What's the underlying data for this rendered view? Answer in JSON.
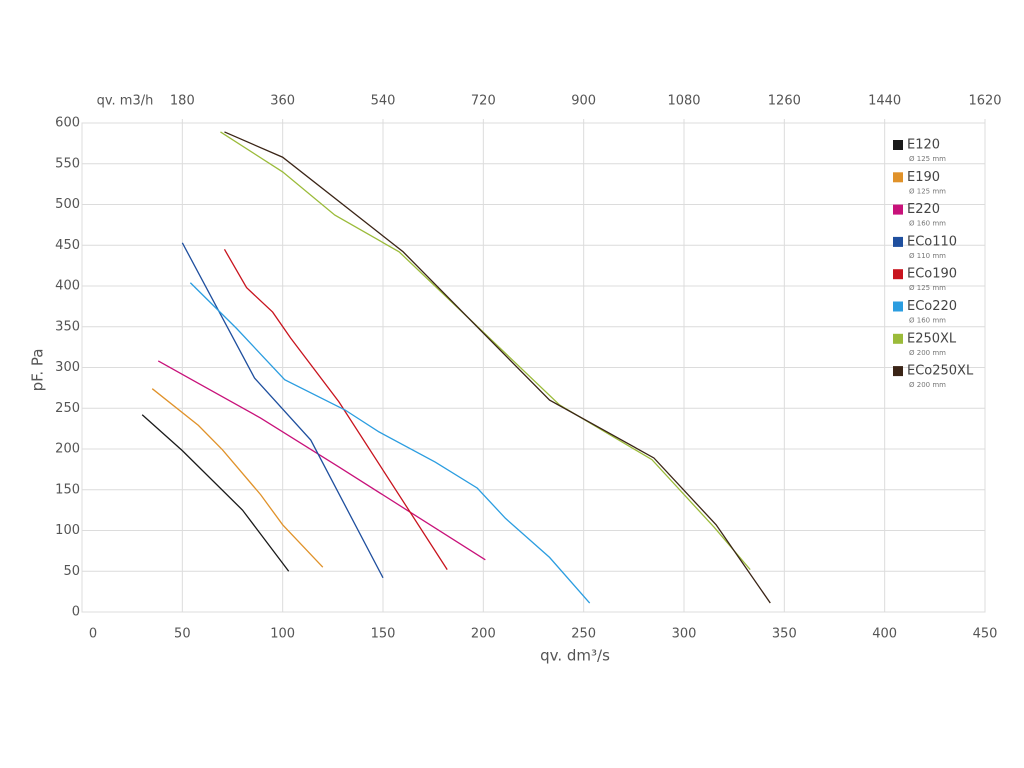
{
  "chart_data": {
    "type": "line",
    "xlabel": "qv. dm³/s",
    "ylabel": "pF. Pa",
    "x2label": "qv. m3/h",
    "xlim": [
      0,
      450
    ],
    "xticks": [
      0,
      50,
      100,
      150,
      200,
      250,
      300,
      350,
      400,
      450
    ],
    "ylim": [
      0,
      600
    ],
    "yticks": [
      0,
      50,
      100,
      150,
      200,
      250,
      300,
      350,
      400,
      450,
      500,
      550,
      600
    ],
    "x2lim": [
      0,
      1620
    ],
    "x2ticks": [
      180,
      360,
      540,
      720,
      900,
      1080,
      1260,
      1440,
      1620
    ],
    "grid": true,
    "legend": "top-right",
    "series": [
      {
        "name": "E120",
        "diameter": "Ø 125 mm",
        "color": "#1a1a1a",
        "x": [
          30,
          50,
          80,
          103
        ],
        "values": [
          242,
          198,
          125,
          50
        ]
      },
      {
        "name": "E190",
        "diameter": "Ø 125 mm",
        "color": "#e0922a",
        "x": [
          35,
          58,
          70,
          89,
          100,
          120
        ],
        "values": [
          274,
          229,
          199,
          144,
          107,
          55
        ]
      },
      {
        "name": "E220",
        "diameter": "Ø 160 mm",
        "color": "#c8127a",
        "x": [
          38,
          89,
          128,
          201
        ],
        "values": [
          308,
          238,
          178,
          64
        ]
      },
      {
        "name": "ECo110",
        "diameter": "Ø 110 mm",
        "color": "#1f4f9e",
        "x": [
          50,
          86,
          114,
          150
        ],
        "values": [
          453,
          287,
          211,
          42
        ]
      },
      {
        "name": "ECo190",
        "diameter": "Ø 125 mm",
        "color": "#c8141e",
        "x": [
          71,
          82,
          95,
          104,
          128,
          182
        ],
        "values": [
          445,
          398,
          368,
          336,
          258,
          52
        ]
      },
      {
        "name": "ECo220",
        "diameter": "Ø 160 mm",
        "color": "#2b9de0",
        "x": [
          54,
          77,
          101,
          131,
          148,
          176,
          197,
          211,
          233,
          253
        ],
        "values": [
          404,
          348,
          285,
          248,
          221,
          184,
          152,
          115,
          67,
          11
        ]
      },
      {
        "name": "E250XL",
        "diameter": "Ø 200 mm",
        "color": "#9bbb3a",
        "x": [
          69,
          100,
          126,
          158,
          238,
          284,
          315,
          333
        ],
        "values": [
          589,
          540,
          487,
          442,
          254,
          187,
          104,
          52
        ]
      },
      {
        "name": "ECo250XL",
        "diameter": "Ø 200 mm",
        "color": "#3a2416",
        "x": [
          71,
          100,
          160,
          233,
          285,
          316,
          343
        ],
        "values": [
          589,
          558,
          442,
          260,
          189,
          107,
          11
        ]
      }
    ]
  }
}
